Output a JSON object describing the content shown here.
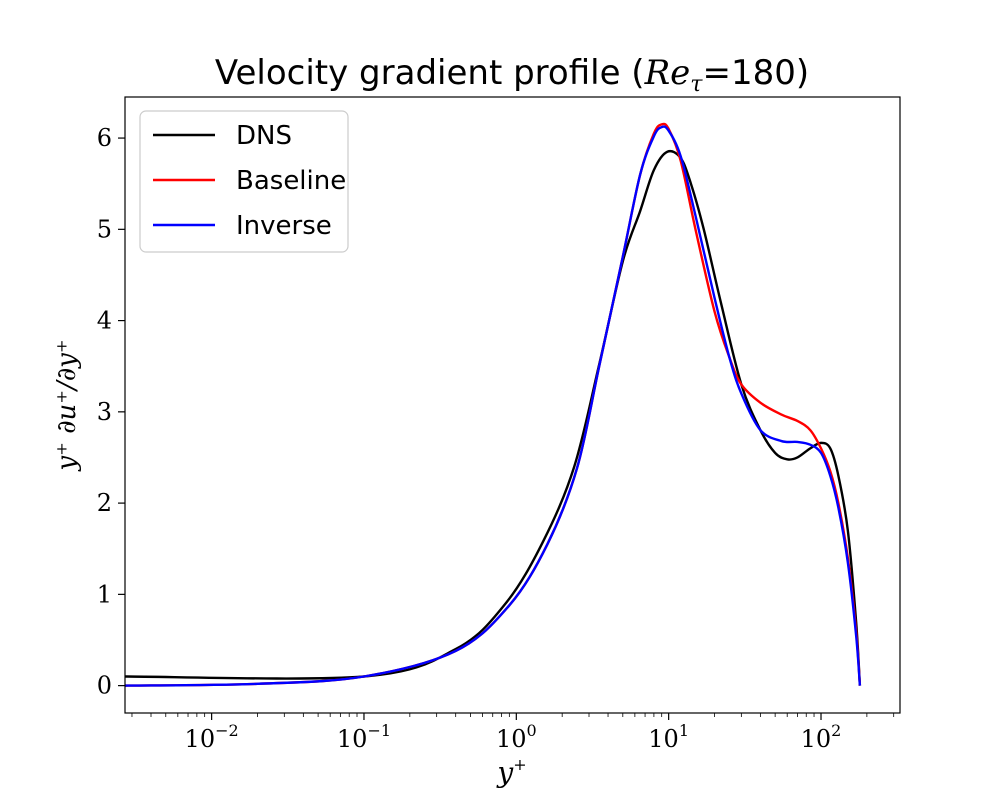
{
  "chart_data": {
    "type": "line",
    "title": "Velocity gradient profile",
    "title_math": "Re",
    "title_math_sub": "τ",
    "title_value": "=180",
    "xlabel": "y",
    "xlabel_sup": "+",
    "ylabel": "y⁺ ∂u⁺/∂y⁺",
    "xscale": "log",
    "xlim": [
      0.0027,
      330
    ],
    "ylim": [
      -0.3,
      6.45
    ],
    "xticks": [
      {
        "value": 0.01,
        "base": "10",
        "exp": "−2"
      },
      {
        "value": 0.1,
        "base": "10",
        "exp": "−1"
      },
      {
        "value": 1,
        "base": "10",
        "exp": "0"
      },
      {
        "value": 10,
        "base": "10",
        "exp": "1"
      },
      {
        "value": 100,
        "base": "10",
        "exp": "2"
      }
    ],
    "yticks": [
      0,
      1,
      2,
      3,
      4,
      5,
      6
    ],
    "ytick_labels": [
      "0",
      "1",
      "2",
      "3",
      "4",
      "5",
      "6"
    ],
    "legend_position": "upper left",
    "grid": false,
    "series": [
      {
        "name": "DNS",
        "color": "#000000",
        "x": [
          0.0027,
          0.1,
          0.4,
          0.85,
          1.5,
          2.4,
          3.5,
          5,
          6.5,
          8,
          9.8,
          12,
          14,
          17,
          22,
          30,
          40,
          50,
          60,
          70,
          85,
          100,
          115,
          130,
          150,
          170,
          180
        ],
        "y": [
          0.1,
          0.1,
          0.4,
          0.9,
          1.58,
          2.4,
          3.52,
          4.65,
          5.2,
          5.65,
          5.85,
          5.78,
          5.5,
          5.0,
          4.2,
          3.3,
          2.8,
          2.55,
          2.48,
          2.5,
          2.6,
          2.66,
          2.6,
          2.3,
          1.7,
          0.7,
          0.0
        ]
      },
      {
        "name": "Baseline",
        "color": "#ff0000",
        "x": [
          0.0027,
          0.02,
          0.1,
          0.4,
          0.9,
          1.6,
          2.5,
          3.5,
          5,
          6.5,
          8,
          9,
          10,
          12,
          15,
          20,
          25,
          30,
          40,
          55,
          70,
          85,
          100,
          115,
          130,
          150,
          170,
          180
        ],
        "y": [
          0.0,
          0.02,
          0.1,
          0.38,
          0.88,
          1.55,
          2.38,
          3.5,
          4.7,
          5.6,
          6.05,
          6.15,
          6.1,
          5.75,
          5.0,
          4.1,
          3.6,
          3.3,
          3.1,
          2.97,
          2.9,
          2.8,
          2.6,
          2.35,
          2.0,
          1.4,
          0.6,
          0.0
        ]
      },
      {
        "name": "Inverse",
        "color": "#0000ff",
        "x": [
          0.0027,
          0.02,
          0.1,
          0.4,
          0.9,
          1.6,
          2.5,
          3.5,
          5,
          6.5,
          8,
          9,
          10,
          12,
          15,
          20,
          25,
          30,
          40,
          55,
          70,
          85,
          100,
          115,
          130,
          150,
          170,
          180
        ],
        "y": [
          0.0,
          0.02,
          0.1,
          0.38,
          0.88,
          1.55,
          2.38,
          3.5,
          4.7,
          5.6,
          6.02,
          6.12,
          6.08,
          5.8,
          5.15,
          4.25,
          3.6,
          3.2,
          2.8,
          2.68,
          2.67,
          2.64,
          2.55,
          2.3,
          1.95,
          1.35,
          0.55,
          0.0
        ]
      }
    ]
  }
}
